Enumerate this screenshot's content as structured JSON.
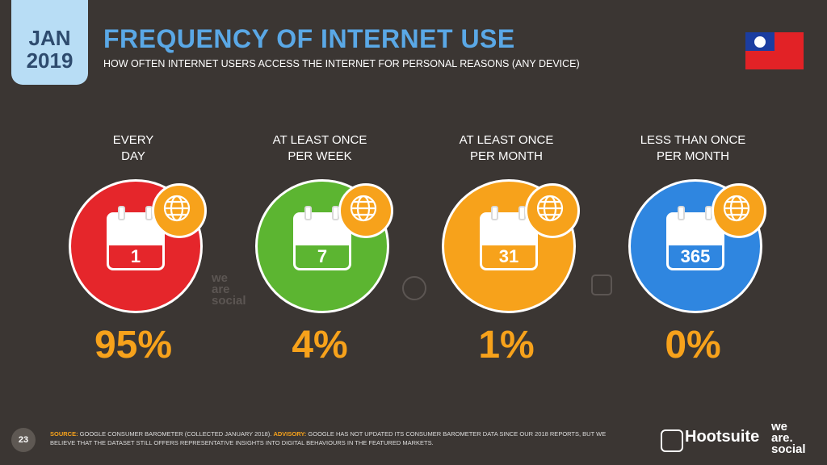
{
  "badge": {
    "month": "JAN",
    "year": "2019"
  },
  "header": {
    "title": "FREQUENCY OF INTERNET USE",
    "subtitle": "HOW OFTEN INTERNET USERS ACCESS THE INTERNET FOR PERSONAL REASONS (ANY DEVICE)"
  },
  "colors": {
    "every_day": "#e5262b",
    "weekly": "#5cb531",
    "monthly": "#f7a21b",
    "less": "#2f86e0",
    "accent": "#f7a21b",
    "title": "#5aa8e6"
  },
  "chart_data": {
    "type": "table",
    "categories": [
      "EVERY\nDAY",
      "AT LEAST ONCE\nPER WEEK",
      "AT LEAST ONCE\nPER MONTH",
      "LESS THAN ONCE\nPER MONTH"
    ],
    "calendar_labels": [
      "1",
      "7",
      "31",
      "365"
    ],
    "values": [
      95,
      4,
      1,
      0
    ],
    "value_labels": [
      "95%",
      "4%",
      "1%",
      "0%"
    ]
  },
  "watermarks": {
    "was_line1": "we",
    "was_line2": "are",
    "was_line3": "social"
  },
  "footer": {
    "page": "23",
    "source_key": "SOURCE:",
    "source_text": " GOOGLE CONSUMER BAROMETER (COLLECTED JANUARY 2018). ",
    "advisory_key": "ADVISORY:",
    "advisory_text": " GOOGLE HAS NOT UPDATED ITS CONSUMER BAROMETER DATA SINCE OUR 2018 REPORTS, BUT WE BELIEVE THAT THE DATASET STILL OFFERS REPRESENTATIVE INSIGHTS INTO DIGITAL BEHAVIOURS IN THE FEATURED MARKETS.",
    "brand1": "Hootsuite",
    "brand2_l1": "we",
    "brand2_l2": "are.",
    "brand2_l3": "social"
  }
}
